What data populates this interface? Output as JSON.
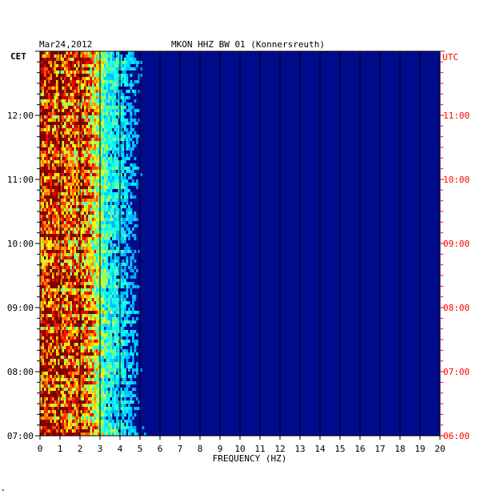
{
  "chart_data": {
    "type": "heatmap",
    "date": "Mar24,2012",
    "title": "MKON HHZ BW 01 (Konnersreuth)",
    "xlabel": "FREQUENCY (HZ)",
    "xlim": [
      0,
      20
    ],
    "x_ticks": [
      0,
      1,
      2,
      3,
      4,
      5,
      6,
      7,
      8,
      9,
      10,
      11,
      12,
      13,
      14,
      15,
      16,
      17,
      18,
      19,
      20
    ],
    "left_axis": {
      "label": "CET",
      "ticks": [
        "07:00",
        "08:00",
        "09:00",
        "10:00",
        "11:00",
        "12:00"
      ],
      "tick_hours": [
        7,
        8,
        9,
        10,
        11,
        12
      ],
      "range_hours": [
        7,
        13
      ]
    },
    "right_axis": {
      "label": "UTC",
      "ticks": [
        "06:00",
        "07:00",
        "08:00",
        "09:00",
        "10:00",
        "11:00"
      ],
      "tick_hours": [
        6,
        7,
        8,
        9,
        10,
        11
      ],
      "range_hours": [
        6,
        12
      ]
    },
    "colors": {
      "background": "#000b8c",
      "right_axis_text": "#ff0000",
      "axis_text": "#000000"
    },
    "energy_profile": {
      "frequency_hz": [
        0,
        0.5,
        1,
        1.5,
        2,
        2.5,
        3,
        3.5,
        4,
        4.5,
        5,
        6,
        7,
        8,
        10,
        20
      ],
      "relative_level": [
        0.85,
        0.9,
        0.82,
        0.78,
        0.8,
        0.7,
        0.45,
        0.32,
        0.28,
        0.22,
        0.14,
        0.07,
        0.04,
        0.02,
        0.01,
        0.0
      ]
    }
  }
}
